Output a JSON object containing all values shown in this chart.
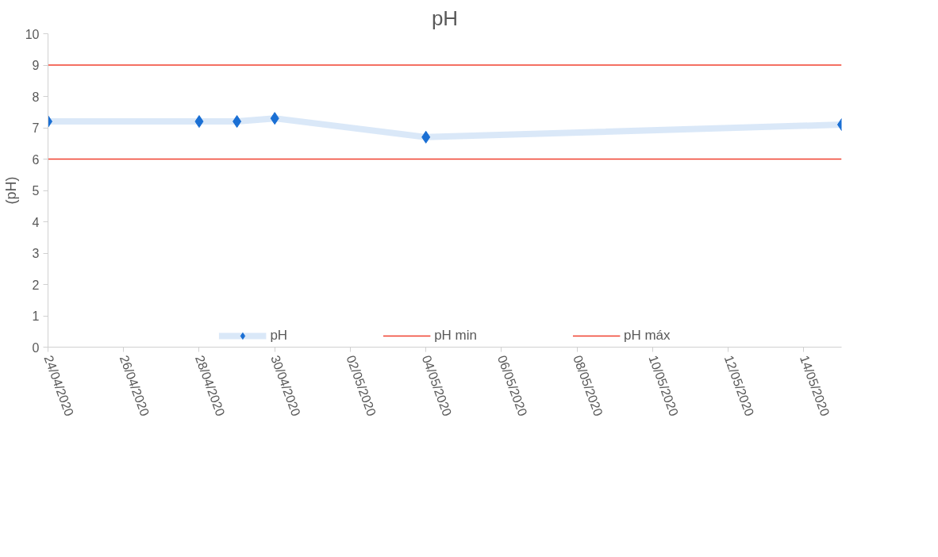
{
  "chart_data": {
    "type": "line",
    "title": "pH",
    "ylabel": "(pH)",
    "x": [
      "2020-04-24",
      "2020-04-28",
      "2020-04-29",
      "2020-04-30",
      "2020-05-04",
      "2020-05-15"
    ],
    "series": [
      {
        "name": "pH",
        "color": "#1a6fd4",
        "values": [
          7.2,
          7.2,
          7.2,
          7.3,
          6.7,
          7.1
        ],
        "marker": "diamond"
      },
      {
        "name": "pH min",
        "type": "line",
        "color": "#f0402f",
        "x": [
          "2020-04-24",
          "2020-05-15"
        ],
        "values": [
          6,
          6
        ],
        "marker": "none"
      },
      {
        "name": "pH máx",
        "type": "line",
        "color": "#f0402f",
        "x": [
          "2020-04-24",
          "2020-05-15"
        ],
        "values": [
          9,
          9
        ],
        "marker": "none"
      }
    ],
    "xlim": [
      "2020-04-24",
      "2020-05-15"
    ],
    "xticks": [
      {
        "value": "2020-04-24",
        "label": "24/04/2020"
      },
      {
        "value": "2020-04-26",
        "label": "26/04/2020"
      },
      {
        "value": "2020-04-28",
        "label": "28/04/2020"
      },
      {
        "value": "2020-04-30",
        "label": "30/04/2020"
      },
      {
        "value": "2020-05-02",
        "label": "02/05/2020"
      },
      {
        "value": "2020-05-04",
        "label": "04/05/2020"
      },
      {
        "value": "2020-05-06",
        "label": "06/05/2020"
      },
      {
        "value": "2020-05-08",
        "label": "08/05/2020"
      },
      {
        "value": "2020-05-10",
        "label": "10/05/2020"
      },
      {
        "value": "2020-05-12",
        "label": "12/05/2020"
      },
      {
        "value": "2020-05-14",
        "label": "14/05/2020"
      }
    ],
    "ylim": [
      0,
      10
    ],
    "yticks": [
      0,
      1,
      2,
      3,
      4,
      5,
      6,
      7,
      8,
      9,
      10
    ],
    "grid": false,
    "legend": "bottom",
    "line_style": "solid"
  }
}
